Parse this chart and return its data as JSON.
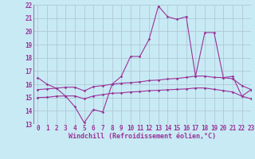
{
  "xlabel": "Windchill (Refroidissement éolien,°C)",
  "x_values": [
    0,
    1,
    2,
    3,
    4,
    5,
    6,
    7,
    8,
    9,
    10,
    11,
    12,
    13,
    14,
    15,
    16,
    17,
    18,
    19,
    20,
    21,
    22,
    23
  ],
  "line1": [
    16.5,
    16.0,
    15.7,
    15.1,
    14.3,
    13.1,
    14.1,
    13.9,
    16.0,
    16.6,
    18.1,
    18.1,
    19.4,
    21.9,
    21.1,
    20.9,
    21.1,
    16.6,
    19.9,
    19.9,
    16.5,
    16.6,
    15.1,
    15.6
  ],
  "line2": [
    15.6,
    15.65,
    15.7,
    15.78,
    15.78,
    15.5,
    15.82,
    15.9,
    16.0,
    16.08,
    16.12,
    16.18,
    16.28,
    16.32,
    16.4,
    16.44,
    16.52,
    16.62,
    16.62,
    16.52,
    16.5,
    16.42,
    15.9,
    15.6
  ],
  "line3": [
    15.0,
    15.02,
    15.1,
    15.12,
    15.12,
    14.9,
    15.12,
    15.22,
    15.32,
    15.35,
    15.42,
    15.45,
    15.52,
    15.55,
    15.58,
    15.62,
    15.65,
    15.72,
    15.72,
    15.62,
    15.52,
    15.42,
    15.1,
    14.9
  ],
  "line_color": "#993399",
  "bg_color": "#c8eaf4",
  "grid_color": "#b0c8d8",
  "ylim": [
    13,
    22
  ],
  "xlim": [
    -0.5,
    23
  ],
  "yticks": [
    13,
    14,
    15,
    16,
    17,
    18,
    19,
    20,
    21,
    22
  ],
  "xticks": [
    0,
    1,
    2,
    3,
    4,
    5,
    6,
    7,
    8,
    9,
    10,
    11,
    12,
    13,
    14,
    15,
    16,
    17,
    18,
    19,
    20,
    21,
    22,
    23
  ],
  "tick_fontsize": 5.5,
  "xlabel_fontsize": 6.0
}
